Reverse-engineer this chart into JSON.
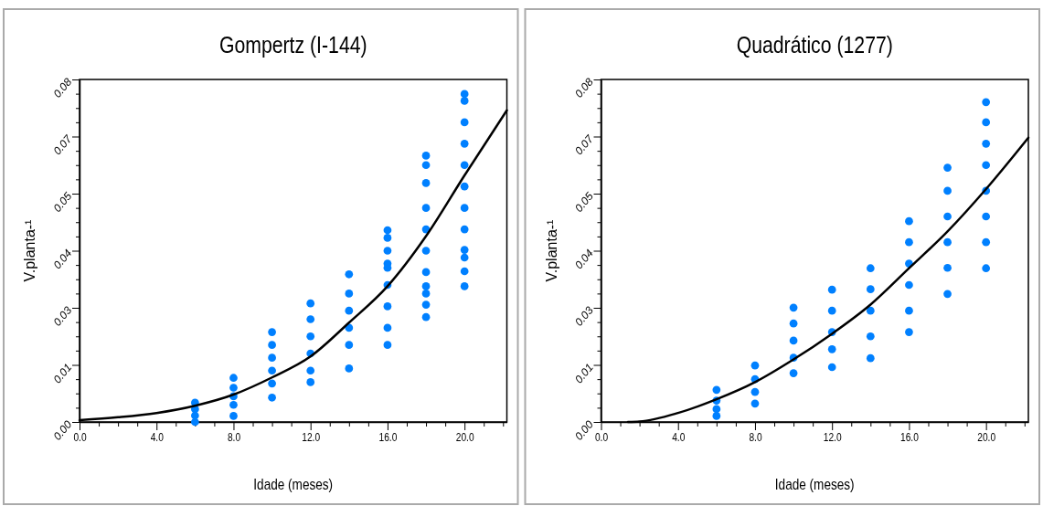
{
  "chart_data": [
    {
      "type": "scatter",
      "title": "Gompertz (I-144)",
      "xlabel": "Idade (meses)",
      "ylabel": "V.planta-¹",
      "xlim": [
        0,
        22.2
      ],
      "ylim": [
        0,
        0.08
      ],
      "xticks": [
        {
          "value": 0,
          "label": "0.0"
        },
        {
          "value": 1,
          "label": null
        },
        {
          "value": 2,
          "label": null
        },
        {
          "value": 3,
          "label": null
        },
        {
          "value": 4,
          "label": "4.0"
        },
        {
          "value": 5,
          "label": null
        },
        {
          "value": 6,
          "label": null
        },
        {
          "value": 7,
          "label": null
        },
        {
          "value": 8,
          "label": "8.0"
        },
        {
          "value": 9,
          "label": null
        },
        {
          "value": 10,
          "label": null
        },
        {
          "value": 11,
          "label": null
        },
        {
          "value": 12,
          "label": "12.0"
        },
        {
          "value": 13,
          "label": null
        },
        {
          "value": 14,
          "label": null
        },
        {
          "value": 15,
          "label": null
        },
        {
          "value": 16,
          "label": "16.0"
        },
        {
          "value": 17,
          "label": null
        },
        {
          "value": 18,
          "label": null
        },
        {
          "value": 19,
          "label": null
        },
        {
          "value": 20,
          "label": "20.0"
        },
        {
          "value": 21,
          "label": null
        },
        {
          "value": 22,
          "label": null
        }
      ],
      "yticks": [
        {
          "value": 0,
          "label": "0.00"
        },
        {
          "value": 0.00333,
          "label": null
        },
        {
          "value": 0.00667,
          "label": null
        },
        {
          "value": 0.01,
          "label": null
        },
        {
          "value": 0.01333,
          "label": "0.01"
        },
        {
          "value": 0.01667,
          "label": null
        },
        {
          "value": 0.02,
          "label": null
        },
        {
          "value": 0.02333,
          "label": null
        },
        {
          "value": 0.02667,
          "label": "0.03"
        },
        {
          "value": 0.03,
          "label": null
        },
        {
          "value": 0.03333,
          "label": null
        },
        {
          "value": 0.03667,
          "label": null
        },
        {
          "value": 0.04,
          "label": "0.04"
        },
        {
          "value": 0.04333,
          "label": null
        },
        {
          "value": 0.04667,
          "label": null
        },
        {
          "value": 0.05,
          "label": null
        },
        {
          "value": 0.05333,
          "label": "0.05"
        },
        {
          "value": 0.05667,
          "label": null
        },
        {
          "value": 0.06,
          "label": null
        },
        {
          "value": 0.06333,
          "label": null
        },
        {
          "value": 0.06667,
          "label": "0.07"
        },
        {
          "value": 0.07,
          "label": null
        },
        {
          "value": 0.07333,
          "label": null
        },
        {
          "value": 0.07667,
          "label": null
        },
        {
          "value": 0.08,
          "label": "0.08"
        }
      ],
      "series": [
        {
          "marker": "circle",
          "color": "#0080ff",
          "x": [
            6,
            6,
            6,
            6,
            8,
            8,
            8,
            8,
            8,
            10,
            10,
            10,
            10,
            10,
            10,
            12,
            12,
            12,
            12,
            12,
            12,
            14,
            14,
            14,
            14,
            14,
            14,
            16,
            16,
            16,
            16,
            16,
            16,
            16,
            16,
            16,
            18,
            18,
            18,
            18,
            18,
            18,
            18,
            18,
            18,
            18,
            18,
            20,
            20,
            20,
            20,
            20,
            20,
            20,
            20,
            20,
            20,
            20,
            20
          ],
          "values": [
            0.0045,
            0.003,
            0.0015,
            0.0,
            0.0103,
            0.008,
            0.006,
            0.004,
            0.0014,
            0.021,
            0.018,
            0.015,
            0.012,
            0.009,
            0.0057,
            0.0277,
            0.024,
            0.02,
            0.016,
            0.012,
            0.0093,
            0.0345,
            0.03,
            0.026,
            0.022,
            0.018,
            0.0125,
            0.0448,
            0.043,
            0.04,
            0.037,
            0.036,
            0.032,
            0.027,
            0.022,
            0.018,
            0.0622,
            0.06,
            0.0558,
            0.05,
            0.045,
            0.04,
            0.035,
            0.0317,
            0.03,
            0.0274,
            0.0245,
            0.0766,
            0.075,
            0.07,
            0.065,
            0.06,
            0.055,
            0.05,
            0.045,
            0.0402,
            0.0384,
            0.0352,
            0.0317
          ]
        },
        {
          "type": "line",
          "color": "#000000",
          "x": [
            0,
            2,
            4,
            6,
            8,
            10,
            12,
            14,
            16,
            18,
            20,
            22.2
          ],
          "values": [
            0.0004,
            0.0011,
            0.0021,
            0.0038,
            0.0064,
            0.0104,
            0.0153,
            0.0232,
            0.0317,
            0.0434,
            0.0576,
            0.0728
          ]
        }
      ]
    },
    {
      "type": "scatter",
      "title": "Quadrático (1277)",
      "xlabel": "Idade (meses)",
      "ylabel": "V.planta-¹",
      "xlim": [
        0,
        22.2
      ],
      "ylim": [
        0,
        0.08
      ],
      "xticks": [
        {
          "value": 0,
          "label": "0.0"
        },
        {
          "value": 1,
          "label": null
        },
        {
          "value": 2,
          "label": null
        },
        {
          "value": 3,
          "label": null
        },
        {
          "value": 4,
          "label": "4.0"
        },
        {
          "value": 5,
          "label": null
        },
        {
          "value": 6,
          "label": null
        },
        {
          "value": 7,
          "label": null
        },
        {
          "value": 8,
          "label": "8.0"
        },
        {
          "value": 9,
          "label": null
        },
        {
          "value": 10,
          "label": null
        },
        {
          "value": 11,
          "label": null
        },
        {
          "value": 12,
          "label": "12.0"
        },
        {
          "value": 13,
          "label": null
        },
        {
          "value": 14,
          "label": null
        },
        {
          "value": 15,
          "label": null
        },
        {
          "value": 16,
          "label": "16.0"
        },
        {
          "value": 17,
          "label": null
        },
        {
          "value": 18,
          "label": null
        },
        {
          "value": 19,
          "label": null
        },
        {
          "value": 20,
          "label": "20.0"
        },
        {
          "value": 21,
          "label": null
        },
        {
          "value": 22,
          "label": null
        }
      ],
      "yticks": [
        {
          "value": 0,
          "label": "0.00"
        },
        {
          "value": 0.00333,
          "label": null
        },
        {
          "value": 0.00667,
          "label": null
        },
        {
          "value": 0.01,
          "label": null
        },
        {
          "value": 0.01333,
          "label": "0.01"
        },
        {
          "value": 0.01667,
          "label": null
        },
        {
          "value": 0.02,
          "label": null
        },
        {
          "value": 0.02333,
          "label": null
        },
        {
          "value": 0.02667,
          "label": "0.03"
        },
        {
          "value": 0.03,
          "label": null
        },
        {
          "value": 0.03333,
          "label": null
        },
        {
          "value": 0.03667,
          "label": null
        },
        {
          "value": 0.04,
          "label": "0.04"
        },
        {
          "value": 0.04333,
          "label": null
        },
        {
          "value": 0.04667,
          "label": null
        },
        {
          "value": 0.05,
          "label": null
        },
        {
          "value": 0.05333,
          "label": "0.05"
        },
        {
          "value": 0.05667,
          "label": null
        },
        {
          "value": 0.06,
          "label": null
        },
        {
          "value": 0.06333,
          "label": null
        },
        {
          "value": 0.06667,
          "label": "0.07"
        },
        {
          "value": 0.07,
          "label": null
        },
        {
          "value": 0.07333,
          "label": null
        },
        {
          "value": 0.07667,
          "label": null
        },
        {
          "value": 0.08,
          "label": "0.08"
        }
      ],
      "series": [
        {
          "marker": "circle",
          "color": "#0080ff",
          "x": [
            6,
            6,
            6,
            6,
            8,
            8,
            8,
            8,
            10,
            10,
            10,
            10,
            10,
            12,
            12,
            12,
            12,
            12,
            14,
            14,
            14,
            14,
            14,
            16,
            16,
            16,
            16,
            16,
            16,
            18,
            18,
            18,
            18,
            18,
            18,
            20,
            20,
            20,
            20,
            20,
            20,
            20,
            20
          ],
          "values": [
            0.0075,
            0.005,
            0.003,
            0.0014,
            0.0132,
            0.01,
            0.007,
            0.0043,
            0.0267,
            0.023,
            0.019,
            0.015,
            0.0114,
            0.0309,
            0.026,
            0.021,
            0.017,
            0.0128,
            0.0359,
            0.031,
            0.026,
            0.02,
            0.0149,
            0.0469,
            0.042,
            0.037,
            0.032,
            0.026,
            0.021,
            0.0594,
            0.054,
            0.048,
            0.042,
            0.036,
            0.0299,
            0.0747,
            0.07,
            0.065,
            0.06,
            0.054,
            0.048,
            0.042,
            0.0359
          ]
        },
        {
          "type": "line",
          "color": "#000000",
          "x": [
            1.4,
            2,
            4,
            6,
            8,
            10,
            12,
            14,
            16,
            18,
            20,
            22.2
          ],
          "values": [
            0,
            0.0001,
            0.0021,
            0.0053,
            0.0093,
            0.0146,
            0.0206,
            0.0274,
            0.0359,
            0.0445,
            0.0544,
            0.0664
          ]
        }
      ]
    }
  ]
}
